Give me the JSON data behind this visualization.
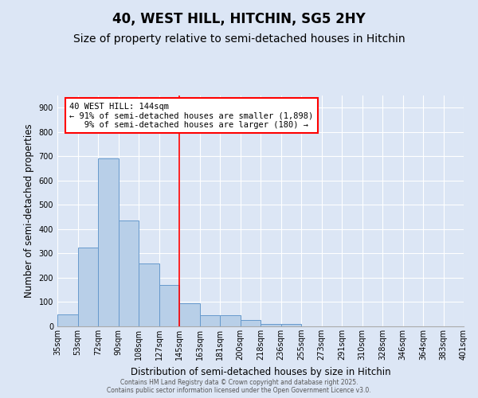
{
  "title": "40, WEST HILL, HITCHIN, SG5 2HY",
  "subtitle": "Size of property relative to semi-detached houses in Hitchin",
  "xlabel": "Distribution of semi-detached houses by size in Hitchin",
  "ylabel": "Number of semi-detached properties",
  "bin_labels": [
    "35sqm",
    "53sqm",
    "72sqm",
    "90sqm",
    "108sqm",
    "127sqm",
    "145sqm",
    "163sqm",
    "181sqm",
    "200sqm",
    "218sqm",
    "236sqm",
    "255sqm",
    "273sqm",
    "291sqm",
    "310sqm",
    "328sqm",
    "346sqm",
    "364sqm",
    "383sqm",
    "401sqm"
  ],
  "bar_values": [
    50,
    323,
    690,
    435,
    260,
    170,
    95,
    45,
    45,
    25,
    10,
    10,
    0,
    0,
    0,
    0,
    0,
    0,
    0,
    0
  ],
  "bar_color": "#b8cfe8",
  "bar_edge_color": "#6699cc",
  "property_bin_index": 6,
  "annotation_line1": "40 WEST HILL: 144sqm",
  "annotation_line2": "← 91% of semi-detached houses are smaller (1,898)",
  "annotation_line3": "   9% of semi-detached houses are larger (180) →",
  "ylim": [
    0,
    950
  ],
  "yticks": [
    0,
    100,
    200,
    300,
    400,
    500,
    600,
    700,
    800,
    900
  ],
  "background_color": "#dce6f5",
  "plot_background_color": "#dce6f5",
  "footer_line1": "Contains HM Land Registry data © Crown copyright and database right 2025.",
  "footer_line2": "Contains public sector information licensed under the Open Government Licence v3.0.",
  "title_fontsize": 12,
  "subtitle_fontsize": 10,
  "xlabel_fontsize": 8.5,
  "ylabel_fontsize": 8.5,
  "tick_fontsize": 7,
  "annotation_fontsize": 7.5,
  "footer_fontsize": 5.5
}
